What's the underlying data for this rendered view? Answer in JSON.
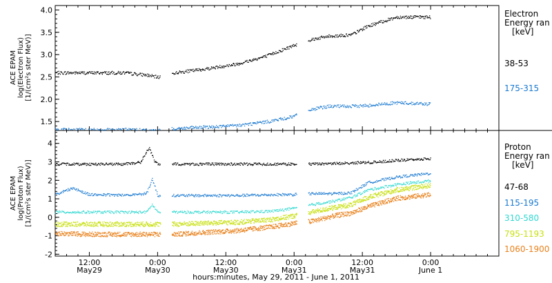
{
  "xaxis": {
    "caption": "hours:minutes, May 29, 2011 - June  1, 2011",
    "ticks": [
      {
        "hour": 12,
        "label": "12:00",
        "date": "May29"
      },
      {
        "hour": 24,
        "label": "0:00",
        "date": "May30"
      },
      {
        "hour": 36,
        "label": "12:00",
        "date": "May30"
      },
      {
        "hour": 48,
        "label": "0:00",
        "date": "May31"
      },
      {
        "hour": 60,
        "label": "12:00",
        "date": "May31"
      },
      {
        "hour": 72,
        "label": "0:00",
        "date": "June 1"
      }
    ]
  },
  "chart_data": [
    {
      "type": "scatter",
      "name": "electron",
      "ylabel_lines": [
        "ACE EPAM",
        "log(Electron Flux)",
        "[1/(cm²s ster MeV)]"
      ],
      "ylim": [
        1.3,
        4.1
      ],
      "yticks": [
        1.5,
        2.0,
        2.5,
        3.0,
        3.5,
        4.0
      ],
      "ytick_labels": [
        "1.5",
        "2.0",
        "2.5",
        "3.0",
        "3.5",
        "4.0"
      ],
      "xlim_hours": [
        6,
        84
      ],
      "gaps_hours": [
        [
          24.5,
          26.5
        ],
        [
          48.5,
          50.5
        ]
      ],
      "legend": {
        "title_lines": [
          "Electron",
          "Energy ran",
          "[keV]"
        ]
      },
      "series": [
        {
          "name": "38-53",
          "color": "#000000",
          "x": [
            6,
            12,
            18,
            22,
            24,
            27,
            32,
            38,
            43,
            46,
            48,
            51,
            54,
            58,
            61,
            66,
            72
          ],
          "y": [
            2.6,
            2.6,
            2.6,
            2.55,
            2.5,
            2.6,
            2.68,
            2.8,
            2.97,
            3.12,
            3.22,
            3.35,
            3.42,
            3.45,
            3.65,
            3.85,
            3.85
          ]
        },
        {
          "name": "175-315",
          "color": "#1878d0",
          "x": [
            6,
            12,
            18,
            24,
            27,
            32,
            38,
            43,
            46,
            48,
            51,
            54,
            58,
            61,
            66,
            72
          ],
          "y": [
            1.33,
            1.32,
            1.33,
            1.3,
            1.35,
            1.38,
            1.42,
            1.5,
            1.57,
            1.63,
            1.78,
            1.85,
            1.85,
            1.87,
            1.93,
            1.9
          ]
        }
      ]
    },
    {
      "type": "scatter",
      "name": "proton",
      "ylabel_lines": [
        "ACE EPAM",
        "log(Proton Flux)",
        "[1/(cm²s ster MeV)]"
      ],
      "ylim": [
        -2.1,
        4.7
      ],
      "yticks": [
        -2,
        -1,
        0,
        1,
        2,
        3,
        4
      ],
      "ytick_labels": [
        "-2",
        "-1",
        "0",
        "1",
        "2",
        "3",
        "4"
      ],
      "xlim_hours": [
        6,
        84
      ],
      "gaps_hours": [
        [
          24.5,
          26.5
        ],
        [
          48.5,
          50.5
        ]
      ],
      "legend": {
        "title_lines": [
          "Proton",
          "Energy ran",
          "[keV]"
        ]
      },
      "series": [
        {
          "name": "47-68",
          "color": "#000000",
          "x": [
            6,
            12,
            18,
            21,
            22.5,
            23.5,
            24,
            27,
            30,
            38,
            46,
            48,
            51,
            57,
            62,
            66,
            72
          ],
          "y": [
            2.9,
            2.9,
            2.9,
            3.0,
            3.8,
            3.0,
            2.9,
            2.9,
            2.9,
            2.9,
            2.9,
            2.9,
            2.9,
            2.95,
            3.0,
            3.1,
            3.2
          ]
        },
        {
          "name": "115-195",
          "color": "#1878d0",
          "x": [
            6,
            9,
            12,
            18,
            22,
            23,
            24,
            27,
            32,
            38,
            46,
            48,
            51,
            55,
            58,
            61,
            66,
            72
          ],
          "y": [
            1.25,
            1.6,
            1.25,
            1.22,
            1.3,
            2.1,
            1.2,
            1.2,
            1.2,
            1.2,
            1.25,
            1.25,
            1.3,
            1.3,
            1.35,
            1.9,
            2.2,
            2.4
          ]
        },
        {
          "name": "310-580",
          "color": "#2fd8d0",
          "x": [
            6,
            12,
            18,
            22,
            23,
            24,
            27,
            32,
            38,
            44,
            48,
            51,
            55,
            58,
            61,
            66,
            72
          ],
          "y": [
            0.3,
            0.3,
            0.3,
            0.3,
            0.7,
            0.3,
            0.3,
            0.3,
            0.3,
            0.35,
            0.5,
            0.7,
            0.9,
            1.1,
            1.5,
            1.8,
            2.0
          ]
        },
        {
          "name": "795-1193",
          "color": "#c8e010",
          "x": [
            6,
            12,
            18,
            24,
            27,
            32,
            38,
            44,
            48,
            51,
            55,
            58,
            61,
            66,
            72
          ],
          "y": [
            -0.35,
            -0.35,
            -0.35,
            -0.35,
            -0.35,
            -0.3,
            -0.25,
            -0.1,
            0.1,
            0.3,
            0.55,
            0.7,
            1.1,
            1.5,
            1.75
          ]
        },
        {
          "name": "1060-1900",
          "color": "#e8801a",
          "x": [
            6,
            12,
            18,
            24,
            27,
            32,
            38,
            44,
            48,
            51,
            55,
            58,
            61,
            66,
            72
          ],
          "y": [
            -0.85,
            -0.9,
            -0.9,
            -0.9,
            -0.9,
            -0.8,
            -0.7,
            -0.5,
            -0.3,
            -0.2,
            0.1,
            0.25,
            0.6,
            1.05,
            1.25
          ]
        }
      ]
    }
  ]
}
